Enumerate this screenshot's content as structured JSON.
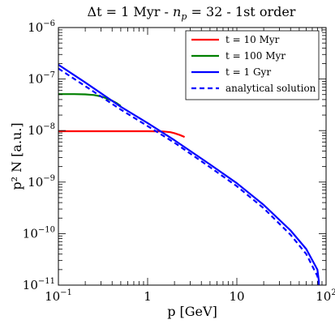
{
  "chart_data": {
    "type": "line",
    "title": "Δt = 1 Myr - n_p = 32 - 1st order",
    "title_parts": {
      "main": "Δt = 1 Myr - ",
      "var": "n",
      "sub": "p",
      "rest": " = 32 - 1st order"
    },
    "xlabel": "p [GeV]",
    "ylabel": "p² N [a.u.]",
    "x_scale": "log",
    "y_scale": "log",
    "xlim": [
      0.1,
      100
    ],
    "ylim": [
      1e-11,
      1e-06
    ],
    "x_ticks": [
      {
        "value": 0.1,
        "base": "10",
        "exp": "−1"
      },
      {
        "value": 1,
        "base": "1",
        "exp": ""
      },
      {
        "value": 10,
        "base": "10",
        "exp": ""
      },
      {
        "value": 100,
        "base": "10",
        "exp": "2"
      }
    ],
    "y_ticks": [
      {
        "value": 1e-06,
        "base": "10",
        "exp": "−6"
      },
      {
        "value": 1e-07,
        "base": "10",
        "exp": "−7"
      },
      {
        "value": 1e-08,
        "base": "10",
        "exp": "−8"
      },
      {
        "value": 1e-09,
        "base": "10",
        "exp": "−9"
      },
      {
        "value": 1e-10,
        "base": "10",
        "exp": "−10"
      },
      {
        "value": 1e-11,
        "base": "10",
        "exp": "−11"
      }
    ],
    "legend_position": "top-right",
    "series": [
      {
        "name": "t = 10 Myr",
        "color": "#ff0000",
        "style": "solid",
        "x": [
          0.1,
          0.3,
          0.6,
          1.0,
          1.5,
          1.8,
          2.0,
          2.3,
          2.6
        ],
        "y": [
          9.7e-09,
          9.7e-09,
          9.7e-09,
          9.7e-09,
          9.6e-09,
          9.3e-09,
          8.9e-09,
          8.2e-09,
          7.5e-09
        ]
      },
      {
        "name": "t = 100 Myr",
        "color": "#008000",
        "style": "solid",
        "x": [
          0.1,
          0.15,
          0.2,
          0.25,
          0.3,
          0.35,
          0.4,
          0.45,
          0.5
        ],
        "y": [
          5.1e-08,
          5.1e-08,
          5.05e-08,
          4.9e-08,
          4.6e-08,
          4.2e-08,
          3.8e-08,
          3.4e-08,
          3e-08
        ]
      },
      {
        "name": "t = 1 Gyr",
        "color": "#0000ff",
        "style": "solid",
        "x": [
          0.1,
          0.2,
          0.5,
          1,
          2,
          5,
          10,
          20,
          40,
          60,
          80,
          83,
          83
        ],
        "y": [
          1.9e-07,
          8.6e-08,
          2.9e-08,
          1.4e-08,
          6.5e-09,
          2.2e-09,
          9.5e-10,
          3.6e-10,
          1.15e-10,
          5e-11,
          2e-11,
          1.2e-11,
          1e-11
        ]
      },
      {
        "name": "analytical solution",
        "color": "#0000ff",
        "style": "dashed",
        "x": [
          0.1,
          0.2,
          0.5,
          1,
          2,
          5,
          10,
          20,
          40,
          60,
          80,
          83
        ],
        "y": [
          1.6e-07,
          7.3e-08,
          2.55e-08,
          1.22e-08,
          5.8e-09,
          1.95e-09,
          8.3e-10,
          3.1e-10,
          9.5e-11,
          4e-11,
          1.5e-11,
          1e-11
        ]
      }
    ]
  }
}
